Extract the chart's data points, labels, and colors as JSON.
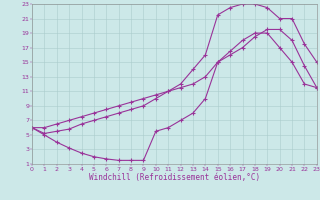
{
  "xlabel": "Windchill (Refroidissement éolien,°C)",
  "xlim": [
    0,
    23
  ],
  "ylim": [
    1,
    23
  ],
  "xticks": [
    0,
    1,
    2,
    3,
    4,
    5,
    6,
    7,
    8,
    9,
    10,
    11,
    12,
    13,
    14,
    15,
    16,
    17,
    18,
    19,
    20,
    21,
    22,
    23
  ],
  "yticks": [
    1,
    3,
    5,
    7,
    9,
    11,
    13,
    15,
    17,
    19,
    21,
    23
  ],
  "bg_color": "#cce8e8",
  "grid_color": "#aacccc",
  "line_color": "#993399",
  "curve1_x": [
    0,
    1,
    2,
    3,
    4,
    5,
    6,
    7,
    8,
    9,
    10,
    11,
    12,
    13,
    14,
    15,
    16,
    17,
    18,
    19,
    20,
    21,
    22,
    23
  ],
  "curve1_y": [
    6.0,
    5.0,
    4.0,
    3.2,
    2.5,
    2.0,
    1.7,
    1.5,
    1.5,
    1.5,
    5.5,
    6.0,
    7.0,
    8.0,
    10.0,
    15.0,
    16.5,
    18.0,
    19.0,
    19.0,
    17.0,
    15.0,
    12.0,
    11.5
  ],
  "curve2_x": [
    0,
    1,
    2,
    3,
    4,
    5,
    6,
    7,
    8,
    9,
    10,
    11,
    12,
    13,
    14,
    15,
    16,
    17,
    18,
    19,
    20,
    21,
    22,
    23
  ],
  "curve2_y": [
    6.0,
    5.2,
    5.5,
    5.8,
    6.5,
    7.0,
    7.5,
    8.0,
    8.5,
    9.0,
    10.0,
    11.0,
    12.0,
    14.0,
    16.0,
    21.5,
    22.5,
    23.0,
    23.0,
    22.5,
    21.0,
    21.0,
    17.5,
    15.0
  ],
  "curve3_x": [
    0,
    1,
    2,
    3,
    4,
    5,
    6,
    7,
    8,
    9,
    10,
    11,
    12,
    13,
    14,
    15,
    16,
    17,
    18,
    19,
    20,
    21,
    22,
    23
  ],
  "curve3_y": [
    6.0,
    6.0,
    6.5,
    7.0,
    7.5,
    8.0,
    8.5,
    9.0,
    9.5,
    10.0,
    10.5,
    11.0,
    11.5,
    12.0,
    13.0,
    15.0,
    16.0,
    17.0,
    18.5,
    19.5,
    19.5,
    18.0,
    14.5,
    11.5
  ],
  "marker": "+",
  "markersize": 3,
  "linewidth": 0.8,
  "tick_fontsize": 4.5,
  "xlabel_fontsize": 5.5
}
